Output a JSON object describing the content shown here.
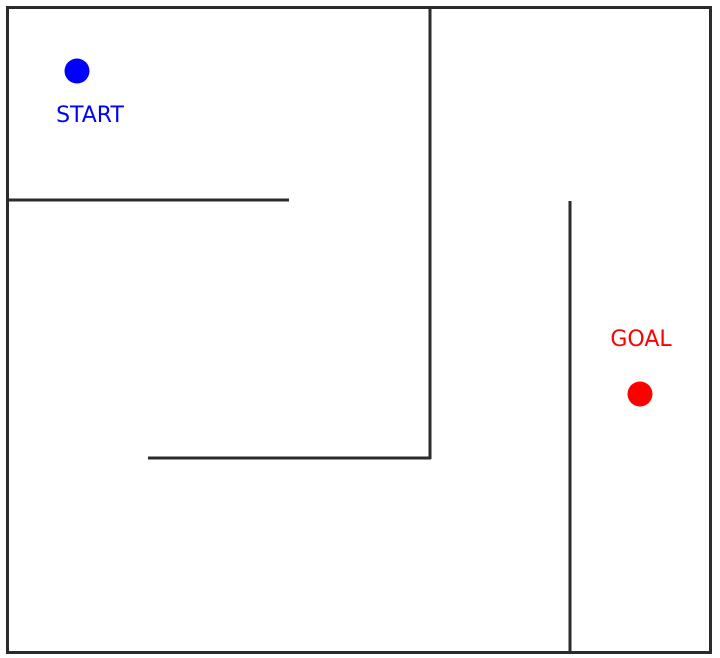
{
  "maze": {
    "start": {
      "label": "START",
      "color": "#0000ff",
      "marker": "start-marker"
    },
    "goal": {
      "label": "GOAL",
      "color": "#ff0000",
      "marker": "goal-marker"
    },
    "wall_color": "#2b2b2b",
    "background": "#ffffff"
  }
}
